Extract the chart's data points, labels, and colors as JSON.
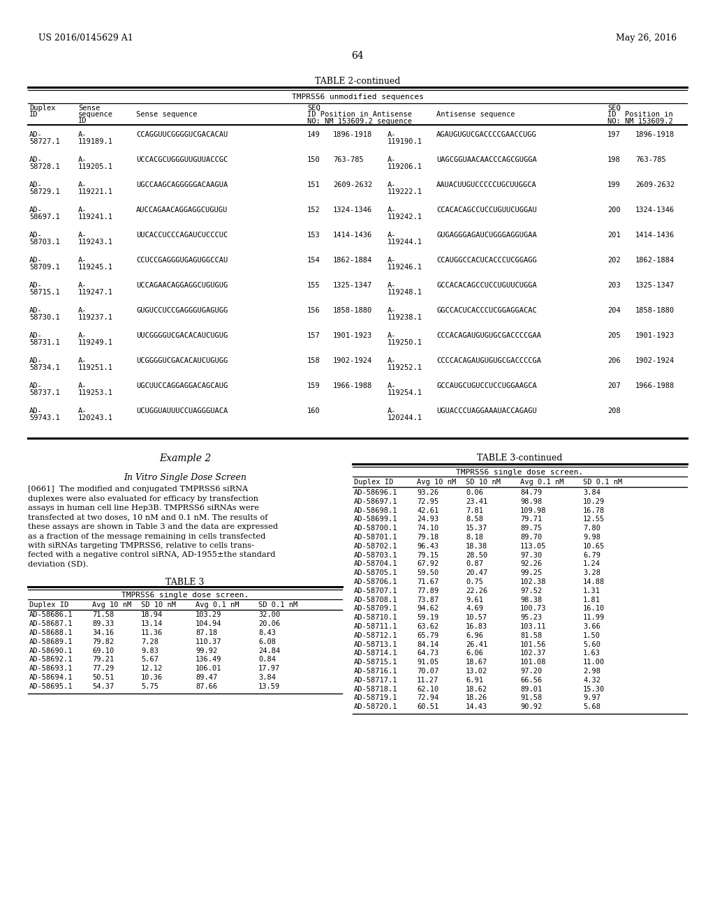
{
  "header_left": "US 2016/0145629 A1",
  "header_right": "May 26, 2016",
  "page_number": "64",
  "table2_title": "TABLE 2-continued",
  "table2_subtitle": "TMPRSS6 unmodified sequences",
  "table2_rows": [
    [
      "AD-",
      "58727.1",
      "A-",
      "119189.1",
      "CCAGGUUCGGGGUCGACACAU",
      "149",
      "1896-1918",
      "A-",
      "119190.1",
      "AGAUGUGUCGACCCCGAACCUGG",
      "197",
      "1896-1918"
    ],
    [
      "AD-",
      "58728.1",
      "A-",
      "119205.1",
      "UCCACGCUGGGUUGUUACCGC",
      "150",
      "763-785",
      "A-",
      "119206.1",
      "UAGCGGUAACAACCCAGCGUGGA",
      "198",
      "763-785"
    ],
    [
      "AD-",
      "58729.1",
      "A-",
      "119221.1",
      "UGCCAAGCAGGGGGACAAGUA",
      "151",
      "2609-2632",
      "A-",
      "119222.1",
      "AAUACUUGUCCCCCUGCUUGGCA",
      "199",
      "2609-2632"
    ],
    [
      "AD-",
      "58697.1",
      "A-",
      "119241.1",
      "AUCCAGAACAGGAGGCUGUGU",
      "152",
      "1324-1346",
      "A-",
      "119242.1",
      "CCACACAGCCUCCUGUUCUGGAU",
      "200",
      "1324-1346"
    ],
    [
      "AD-",
      "58703.1",
      "A-",
      "119243.1",
      "UUCACCUCCCAGAUCUCCCUC",
      "153",
      "1414-1436",
      "A-",
      "119244.1",
      "GUGAGGGAGAUCUGGGAGGUGAA",
      "201",
      "1414-1436"
    ],
    [
      "AD-",
      "58709.1",
      "A-",
      "119245.1",
      "CCUCCGAGGGUGAGUGGCCAU",
      "154",
      "1862-1884",
      "A-",
      "119246.1",
      "CCAUGGCCACUCACCCUCGGAGG",
      "202",
      "1862-1884"
    ],
    [
      "AD-",
      "58715.1",
      "A-",
      "119247.1",
      "UCCAGAACAGGAGGCUGUGUG",
      "155",
      "1325-1347",
      "A-",
      "119248.1",
      "GCCACACAGCCUCCUGUUCUGGA",
      "203",
      "1325-1347"
    ],
    [
      "AD-",
      "58730.1",
      "A-",
      "119237.1",
      "GUGUCCUCCGAGGGUGAGUGG",
      "156",
      "1858-1880",
      "A-",
      "119238.1",
      "GGCCACUCACCCUCGGAGGACAC",
      "204",
      "1858-1880"
    ],
    [
      "AD-",
      "58731.1",
      "A-",
      "119249.1",
      "UUCGGGGUCGACACAUCUGUG",
      "157",
      "1901-1923",
      "A-",
      "119250.1",
      "CCCACAGAUGUGUGCGACCCCGAA",
      "205",
      "1901-1923"
    ],
    [
      "AD-",
      "58734.1",
      "A-",
      "119251.1",
      "UCGGGGUCGACACAUCUGUGG",
      "158",
      "1902-1924",
      "A-",
      "119252.1",
      "CCCCACAGAUGUGUGCGACCCCGA",
      "206",
      "1902-1924"
    ],
    [
      "AD-",
      "58737.1",
      "A-",
      "119253.1",
      "UGCUUCCAGGAGGACAGCAUG",
      "159",
      "1966-1988",
      "A-",
      "119254.1",
      "GCCAUGCUGUCCUCCUGGAAGCA",
      "207",
      "1966-1988"
    ],
    [
      "AD-",
      "59743.1",
      "A-",
      "120243.1",
      "UCUGGUAUUUCCUAGGGUACA",
      "160",
      "",
      "A-",
      "120244.1",
      "UGUACCCUAGGAAAUACCAGAGU",
      "208",
      ""
    ]
  ],
  "example2_title": "Example 2",
  "example2_subtitle": "In Vitro Single Dose Screen",
  "example2_para": "[0661]  The modified and conjugated TMPRSS6 siRNA duplexes were also evaluated for efficacy by transfection assays in human cell line Hep3B. TMPRSS6 siRNAs were transfected at two doses, 10 nM and 0.1 nM. The results of these assays are shown in Table 3 and the data are expressed as a fraction of the message remaining in cells transfected with siRNAs targeting TMPRSS6, relative to cells trans-fected with a negative control siRNA, AD-1955±the standard deviation (SD).",
  "table3_title": "TABLE 3",
  "table3_subtitle": "TMPRSS6 single dose screen.",
  "table3_col_headers": [
    "Duplex ID",
    "Avg 10 nM",
    "SD 10 nM",
    "Avg 0.1 nM",
    "SD 0.1 nM"
  ],
  "table3_rows_left": [
    [
      "AD-58686.1",
      "71.58",
      "18.94",
      "103.29",
      "32.00"
    ],
    [
      "AD-58687.1",
      "89.33",
      "13.14",
      "104.94",
      "20.06"
    ],
    [
      "AD-58688.1",
      "34.16",
      "11.36",
      "87.18",
      "8.43"
    ],
    [
      "AD-58689.1",
      "79.82",
      "7.28",
      "110.37",
      "6.08"
    ],
    [
      "AD-58690.1",
      "69.10",
      "9.83",
      "99.92",
      "24.84"
    ],
    [
      "AD-58692.1",
      "79.21",
      "5.67",
      "136.49",
      "0.84"
    ],
    [
      "AD-58693.1",
      "77.29",
      "12.12",
      "106.01",
      "17.97"
    ],
    [
      "AD-58694.1",
      "50.51",
      "10.36",
      "89.47",
      "3.84"
    ],
    [
      "AD-58695.1",
      "54.37",
      "5.75",
      "87.66",
      "13.59"
    ]
  ],
  "table3_continued_title": "TABLE 3-continued",
  "table3_continued_subtitle": "TMPRSS6 single dose screen.",
  "table3_col_headers2": [
    "Duplex ID",
    "Avg 10 nM",
    "SD 10 nM",
    "Avg 0.1 nM",
    "SD 0.1 nM"
  ],
  "table3_rows_right": [
    [
      "AD-58696.1",
      "93.26",
      "0.06",
      "84.79",
      "3.84"
    ],
    [
      "AD-58697.1",
      "72.95",
      "23.41",
      "98.98",
      "10.29"
    ],
    [
      "AD-58698.1",
      "42.61",
      "7.81",
      "109.98",
      "16.78"
    ],
    [
      "AD-58699.1",
      "24.93",
      "8.58",
      "79.71",
      "12.55"
    ],
    [
      "AD-58700.1",
      "74.10",
      "15.37",
      "89.75",
      "7.80"
    ],
    [
      "AD-58701.1",
      "79.18",
      "8.18",
      "89.70",
      "9.98"
    ],
    [
      "AD-58702.1",
      "96.43",
      "18.38",
      "113.05",
      "10.65"
    ],
    [
      "AD-58703.1",
      "79.15",
      "28.50",
      "97.30",
      "6.79"
    ],
    [
      "AD-58704.1",
      "67.92",
      "0.87",
      "92.26",
      "1.24"
    ],
    [
      "AD-58705.1",
      "59.50",
      "20.47",
      "99.25",
      "3.28"
    ],
    [
      "AD-58706.1",
      "71.67",
      "0.75",
      "102.38",
      "14.88"
    ],
    [
      "AD-58707.1",
      "77.89",
      "22.26",
      "97.52",
      "1.31"
    ],
    [
      "AD-58708.1",
      "73.87",
      "9.61",
      "98.38",
      "1.81"
    ],
    [
      "AD-58709.1",
      "94.62",
      "4.69",
      "100.73",
      "16.10"
    ],
    [
      "AD-58710.1",
      "59.19",
      "10.57",
      "95.23",
      "11.99"
    ],
    [
      "AD-58711.1",
      "63.62",
      "16.83",
      "103.11",
      "3.66"
    ],
    [
      "AD-58712.1",
      "65.79",
      "6.96",
      "81.58",
      "1.50"
    ],
    [
      "AD-58713.1",
      "84.14",
      "26.41",
      "101.56",
      "5.60"
    ],
    [
      "AD-58714.1",
      "64.73",
      "6.06",
      "102.37",
      "1.63"
    ],
    [
      "AD-58715.1",
      "91.05",
      "18.67",
      "101.08",
      "11.00"
    ],
    [
      "AD-58716.1",
      "70.07",
      "13.02",
      "97.20",
      "2.98"
    ],
    [
      "AD-58717.1",
      "11.27",
      "6.91",
      "66.56",
      "4.32"
    ],
    [
      "AD-58718.1",
      "62.10",
      "18.62",
      "89.01",
      "15.30"
    ],
    [
      "AD-58719.1",
      "72.94",
      "18.26",
      "91.58",
      "9.97"
    ],
    [
      "AD-58720.1",
      "60.51",
      "14.43",
      "90.92",
      "5.68"
    ]
  ]
}
